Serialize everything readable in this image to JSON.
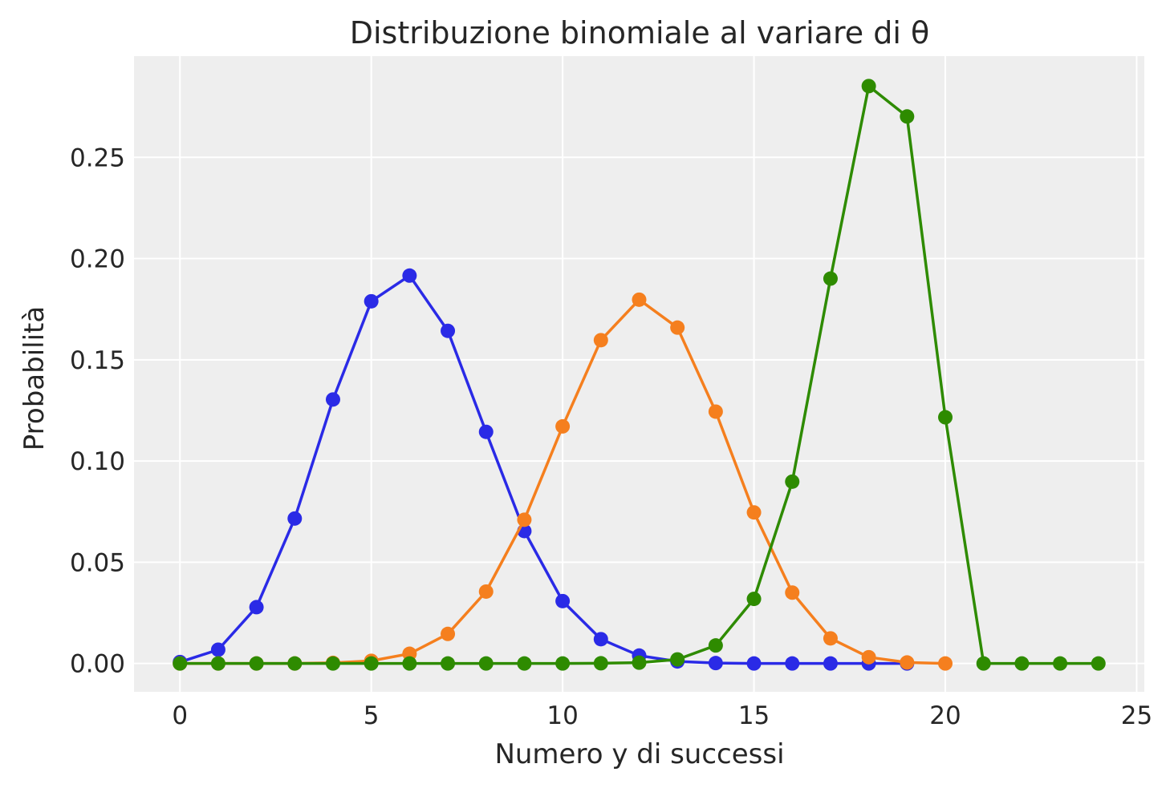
{
  "chart_data": {
    "type": "line",
    "title": "Distribuzione binomiale al variare di θ",
    "xlabel": "Numero y di successi",
    "ylabel": "Probabilità",
    "xlim": [
      -1.2,
      25.2
    ],
    "ylim": [
      -0.014,
      0.3
    ],
    "xticks": [
      0,
      5,
      10,
      15,
      20,
      25
    ],
    "xtick_labels": [
      "0",
      "5",
      "10",
      "15",
      "20",
      "25"
    ],
    "yticks": [
      0,
      0.05,
      0.1,
      0.15,
      0.2,
      0.25
    ],
    "ytick_labels": [
      "0.00",
      "0.05",
      "0.10",
      "0.15",
      "0.20",
      "0.25"
    ],
    "grid": true,
    "background": "#eeeeee",
    "series": [
      {
        "color": "#2a2ae6",
        "x": [
          0,
          1,
          2,
          3,
          4,
          5,
          6,
          7,
          8,
          9,
          10,
          11,
          12,
          13,
          14,
          15,
          16,
          17,
          18,
          19
        ],
        "values": [
          0.0007,
          0.0068,
          0.0278,
          0.0716,
          0.1304,
          0.1789,
          0.1916,
          0.1643,
          0.1144,
          0.0654,
          0.0308,
          0.012,
          0.0039,
          0.001,
          0.0002,
          0.0,
          0.0,
          0.0,
          0.0,
          0.0
        ]
      },
      {
        "color": "#f57f1e",
        "x": [
          0,
          1,
          2,
          3,
          4,
          5,
          6,
          7,
          8,
          9,
          10,
          11,
          12,
          13,
          14,
          15,
          16,
          17,
          18,
          19,
          20
        ],
        "values": [
          0.0,
          0.0,
          0.0,
          0.0,
          0.0003,
          0.0013,
          0.0048,
          0.0146,
          0.0355,
          0.071,
          0.1171,
          0.1597,
          0.1797,
          0.1659,
          0.1244,
          0.0746,
          0.035,
          0.0124,
          0.0031,
          0.0005,
          0.0
        ]
      },
      {
        "color": "#2e8b00",
        "x": [
          0,
          1,
          2,
          3,
          4,
          5,
          6,
          7,
          8,
          9,
          10,
          11,
          12,
          13,
          14,
          15,
          16,
          17,
          18,
          19,
          20,
          21,
          22,
          23,
          24
        ],
        "values": [
          0.0,
          0.0,
          0.0,
          0.0,
          0.0,
          0.0,
          0.0,
          0.0,
          0.0,
          0.0,
          0.0,
          0.0001,
          0.0004,
          0.002,
          0.0089,
          0.0319,
          0.0898,
          0.1901,
          0.2852,
          0.2702,
          0.1216,
          0.0,
          0.0,
          0.0,
          0.0
        ]
      }
    ]
  }
}
